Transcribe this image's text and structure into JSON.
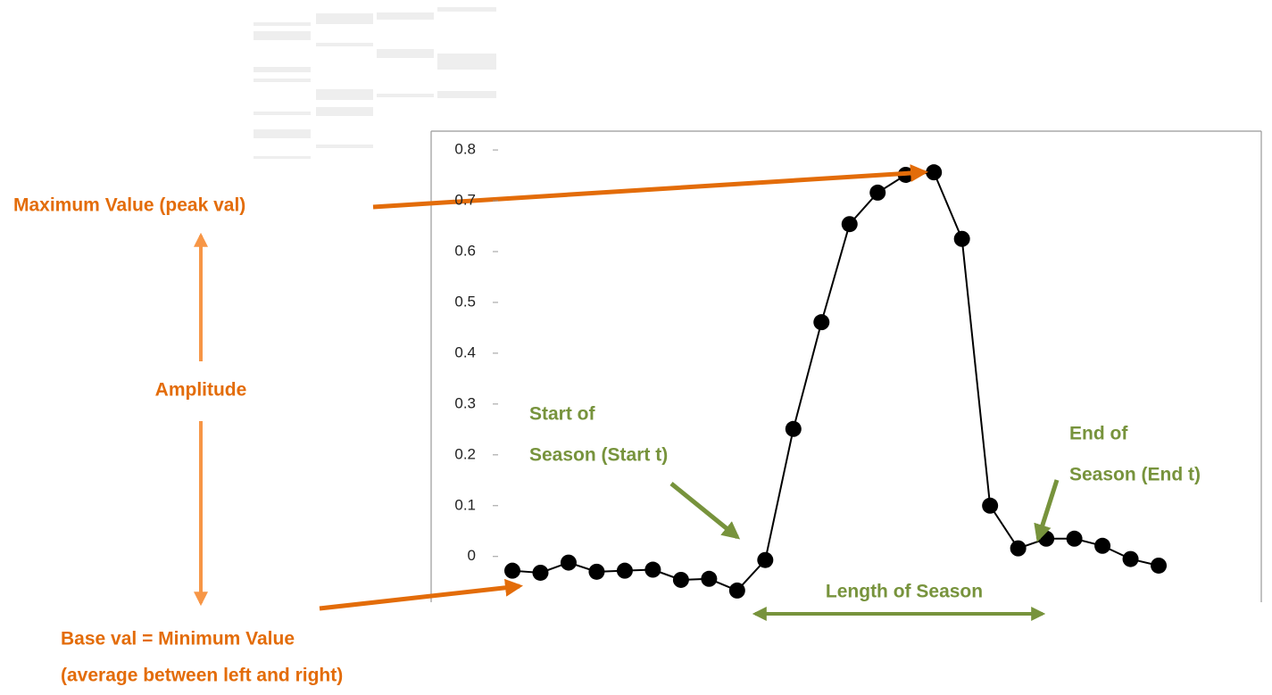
{
  "chart_data": {
    "type": "line",
    "categories": [
      null,
      null,
      null,
      null,
      null,
      null,
      null,
      null,
      null,
      null,
      null,
      null,
      null,
      null,
      null,
      null,
      null,
      null,
      null,
      null,
      null,
      null,
      null,
      null
    ],
    "values": [
      -0.028,
      -0.032,
      -0.012,
      -0.03,
      -0.028,
      -0.026,
      -0.046,
      -0.044,
      -0.067,
      -0.007,
      0.251,
      0.461,
      0.654,
      0.716,
      0.751,
      0.756,
      0.625,
      0.1,
      0.016,
      0.035,
      0.035,
      0.021,
      -0.005,
      -0.018
    ],
    "color": "#000000",
    "ylim": [
      -0.09,
      0.837
    ],
    "yticks": [
      0,
      0.1,
      0.2,
      0.3,
      0.4,
      0.5,
      0.6,
      0.7,
      0.8
    ],
    "annotations": {
      "max": "Maximum Value (peak val)",
      "amplitude": "Amplitude",
      "base": [
        "Base val = Minimum Value",
        "(average between left and right)"
      ],
      "start": [
        "Start of",
        "Season (Start t)"
      ],
      "end": [
        "End of",
        "Season (End t)"
      ],
      "length": "Length of Season"
    }
  }
}
